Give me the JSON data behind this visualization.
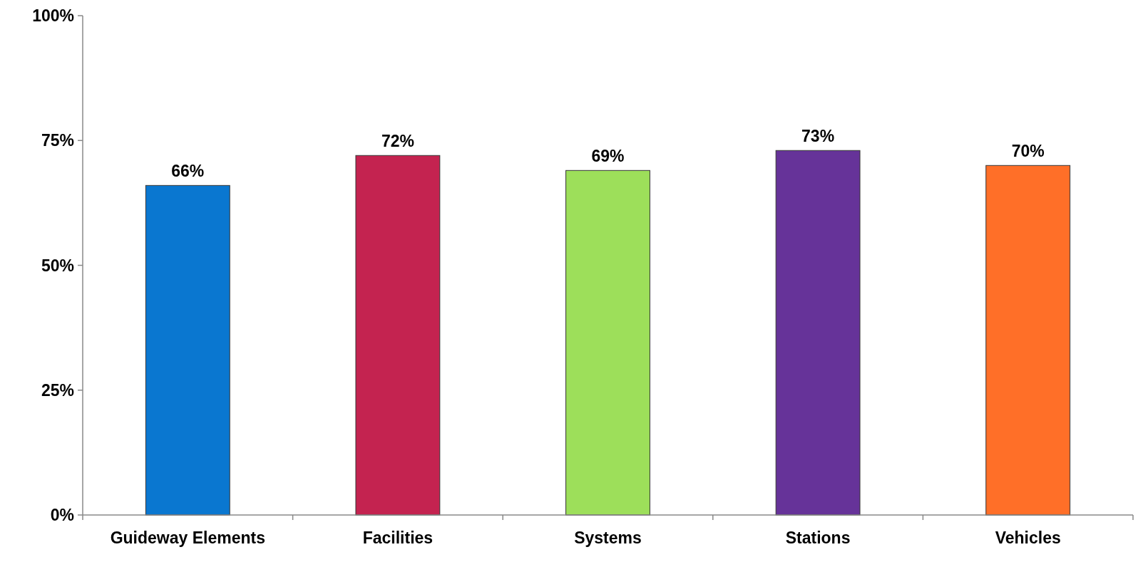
{
  "chart_data": {
    "type": "bar",
    "categories": [
      "Guideway Elements",
      "Facilities",
      "Systems",
      "Stations",
      "Vehicles"
    ],
    "values": [
      66,
      72,
      69,
      73,
      70
    ],
    "colors": [
      "#0a77d0",
      "#c42350",
      "#9ddf5a",
      "#663399",
      "#ff6f28"
    ],
    "value_labels": [
      "66%",
      "72%",
      "69%",
      "73%",
      "70%"
    ],
    "ylim": [
      0,
      100
    ],
    "yticks": [
      {
        "value": 0,
        "label": "0%"
      },
      {
        "value": 25,
        "label": "25%"
      },
      {
        "value": 50,
        "label": "50%"
      },
      {
        "value": 75,
        "label": "75%"
      },
      {
        "value": 100,
        "label": "100%"
      }
    ],
    "grid": false
  }
}
